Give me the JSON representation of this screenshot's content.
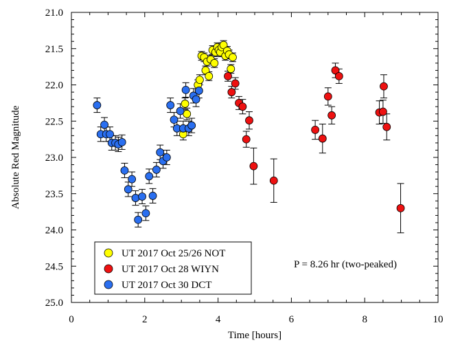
{
  "chart_data": {
    "type": "scatter",
    "xlabel": "Time [hours]",
    "ylabel": "Absolute Red Magnitude",
    "xlim": [
      0,
      10
    ],
    "ylim": [
      25.0,
      21.0
    ],
    "y_inverted": true,
    "x_ticks": [
      "0",
      "2",
      "4",
      "6",
      "8",
      "10"
    ],
    "y_ticks": [
      "21.0",
      "21.5",
      "22.0",
      "22.5",
      "23.0",
      "23.5",
      "24.0",
      "24.5",
      "25.0"
    ],
    "grid": false,
    "legend_position": "bottom-left",
    "annotation": "P = 8.26 hr (two-peaked)",
    "series": [
      {
        "name": "UT 2017 Oct 25/26 NOT",
        "color": "#ffff00",
        "points": [
          {
            "x": 3.05,
            "y": 22.68,
            "err": 0.08
          },
          {
            "x": 3.1,
            "y": 22.26,
            "err": 0.08
          },
          {
            "x": 3.15,
            "y": 22.4,
            "err": 0.08
          },
          {
            "x": 3.45,
            "y": 22.0,
            "err": 0.07
          },
          {
            "x": 3.5,
            "y": 21.93,
            "err": 0.07
          },
          {
            "x": 3.55,
            "y": 21.6,
            "err": 0.06
          },
          {
            "x": 3.62,
            "y": 21.62,
            "err": 0.06
          },
          {
            "x": 3.66,
            "y": 21.8,
            "err": 0.06
          },
          {
            "x": 3.7,
            "y": 21.68,
            "err": 0.06
          },
          {
            "x": 3.75,
            "y": 21.88,
            "err": 0.06
          },
          {
            "x": 3.8,
            "y": 21.65,
            "err": 0.06
          },
          {
            "x": 3.85,
            "y": 21.52,
            "err": 0.06
          },
          {
            "x": 3.9,
            "y": 21.7,
            "err": 0.06
          },
          {
            "x": 3.93,
            "y": 21.55,
            "err": 0.06
          },
          {
            "x": 3.98,
            "y": 21.48,
            "err": 0.06
          },
          {
            "x": 4.02,
            "y": 21.52,
            "err": 0.06
          },
          {
            "x": 4.06,
            "y": 21.55,
            "err": 0.06
          },
          {
            "x": 4.1,
            "y": 21.48,
            "err": 0.06
          },
          {
            "x": 4.15,
            "y": 21.45,
            "err": 0.06
          },
          {
            "x": 4.2,
            "y": 21.6,
            "err": 0.06
          },
          {
            "x": 4.25,
            "y": 21.53,
            "err": 0.06
          },
          {
            "x": 4.3,
            "y": 21.58,
            "err": 0.06
          },
          {
            "x": 4.35,
            "y": 21.78,
            "err": 0.06
          },
          {
            "x": 4.4,
            "y": 21.62,
            "err": 0.06
          }
        ]
      },
      {
        "name": "UT 2017 Oct 28 WIYN",
        "color": "#ee1111",
        "points": [
          {
            "x": 4.27,
            "y": 21.88,
            "err": 0.07
          },
          {
            "x": 4.37,
            "y": 22.1,
            "err": 0.08
          },
          {
            "x": 4.47,
            "y": 21.98,
            "err": 0.08
          },
          {
            "x": 4.57,
            "y": 22.25,
            "err": 0.09
          },
          {
            "x": 4.67,
            "y": 22.3,
            "err": 0.1
          },
          {
            "x": 4.77,
            "y": 22.75,
            "err": 0.11
          },
          {
            "x": 4.85,
            "y": 22.49,
            "err": 0.12
          },
          {
            "x": 4.97,
            "y": 23.12,
            "err": 0.25
          },
          {
            "x": 5.52,
            "y": 23.32,
            "err": 0.3
          },
          {
            "x": 6.65,
            "y": 22.62,
            "err": 0.13
          },
          {
            "x": 6.85,
            "y": 22.74,
            "err": 0.2
          },
          {
            "x": 7.0,
            "y": 22.16,
            "err": 0.12
          },
          {
            "x": 7.1,
            "y": 22.42,
            "err": 0.12
          },
          {
            "x": 7.2,
            "y": 21.8,
            "err": 0.1
          },
          {
            "x": 7.3,
            "y": 21.88,
            "err": 0.1
          },
          {
            "x": 8.4,
            "y": 22.38,
            "err": 0.16
          },
          {
            "x": 8.5,
            "y": 22.37,
            "err": 0.16
          },
          {
            "x": 8.52,
            "y": 22.02,
            "err": 0.16
          },
          {
            "x": 8.6,
            "y": 22.58,
            "err": 0.18
          },
          {
            "x": 8.98,
            "y": 23.7,
            "err": 0.34
          }
        ]
      },
      {
        "name": "UT 2017 Oct 30 DCT",
        "color": "#2a6ff0",
        "points": [
          {
            "x": 0.7,
            "y": 22.28,
            "err": 0.1
          },
          {
            "x": 0.8,
            "y": 22.68,
            "err": 0.1
          },
          {
            "x": 0.9,
            "y": 22.55,
            "err": 0.1
          },
          {
            "x": 0.95,
            "y": 22.68,
            "err": 0.1
          },
          {
            "x": 1.05,
            "y": 22.68,
            "err": 0.1
          },
          {
            "x": 1.1,
            "y": 22.8,
            "err": 0.1
          },
          {
            "x": 1.2,
            "y": 22.8,
            "err": 0.1
          },
          {
            "x": 1.28,
            "y": 22.82,
            "err": 0.1
          },
          {
            "x": 1.38,
            "y": 22.79,
            "err": 0.1
          },
          {
            "x": 1.45,
            "y": 23.18,
            "err": 0.1
          },
          {
            "x": 1.55,
            "y": 23.44,
            "err": 0.1
          },
          {
            "x": 1.65,
            "y": 23.3,
            "err": 0.1
          },
          {
            "x": 1.75,
            "y": 23.56,
            "err": 0.1
          },
          {
            "x": 1.82,
            "y": 23.86,
            "err": 0.1
          },
          {
            "x": 1.93,
            "y": 23.54,
            "err": 0.1
          },
          {
            "x": 2.03,
            "y": 23.77,
            "err": 0.1
          },
          {
            "x": 2.12,
            "y": 23.26,
            "err": 0.1
          },
          {
            "x": 2.22,
            "y": 23.53,
            "err": 0.1
          },
          {
            "x": 2.32,
            "y": 23.17,
            "err": 0.1
          },
          {
            "x": 2.42,
            "y": 22.93,
            "err": 0.1
          },
          {
            "x": 2.5,
            "y": 23.05,
            "err": 0.1
          },
          {
            "x": 2.6,
            "y": 23.0,
            "err": 0.1
          },
          {
            "x": 2.7,
            "y": 22.28,
            "err": 0.1
          },
          {
            "x": 2.8,
            "y": 22.48,
            "err": 0.1
          },
          {
            "x": 2.88,
            "y": 22.6,
            "err": 0.1
          },
          {
            "x": 2.97,
            "y": 22.36,
            "err": 0.1
          },
          {
            "x": 3.05,
            "y": 22.6,
            "err": 0.1
          },
          {
            "x": 3.12,
            "y": 22.07,
            "err": 0.1
          },
          {
            "x": 3.2,
            "y": 22.6,
            "err": 0.1
          },
          {
            "x": 3.28,
            "y": 22.56,
            "err": 0.1
          },
          {
            "x": 3.33,
            "y": 22.15,
            "err": 0.1
          },
          {
            "x": 3.4,
            "y": 22.2,
            "err": 0.1
          },
          {
            "x": 3.48,
            "y": 22.08,
            "err": 0.1
          }
        ]
      }
    ]
  }
}
